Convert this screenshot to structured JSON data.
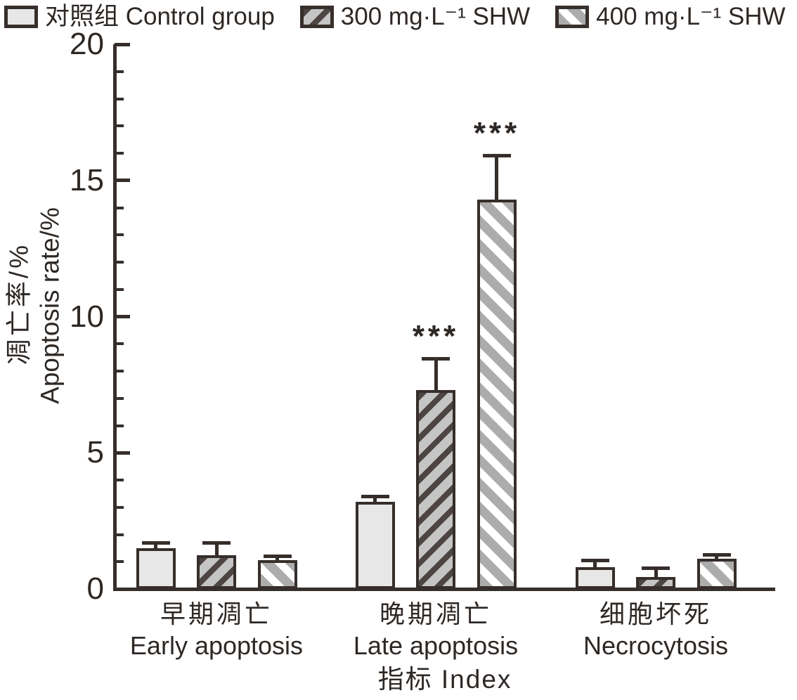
{
  "legend": {
    "items": [
      {
        "label": "对照组 Control group",
        "pattern": "solid"
      },
      {
        "label": "300 mg·L⁻¹ SHW",
        "pattern": "hatch-forward"
      },
      {
        "label": "400 mg·L⁻¹ SHW",
        "pattern": "hatch-back"
      }
    ]
  },
  "axes": {
    "y_label_zh": "凋亡率/%",
    "y_label_en": "Apoptosis rate/%",
    "x_title": "指标 Index"
  },
  "colors": {
    "line": "#362e2b",
    "control_fill": "#e7e7e7",
    "hatch300_stripe": "#4d4542",
    "hatch300_bg": "#c5c5c5",
    "hatch400_stripe": "#acacac",
    "hatch400_bg": "#ffffff"
  },
  "chart_data": {
    "type": "bar",
    "title": "",
    "xlabel": "指标 Index",
    "ylabel": "凋亡率/% Apoptosis rate/%",
    "ylim": [
      0,
      20
    ],
    "ytick_labels": [
      0,
      5,
      10,
      15,
      20
    ],
    "ytick_minor_step": 1,
    "grid": false,
    "legend_position": "top",
    "categories_zh": [
      "早期凋亡",
      "晚期凋亡",
      "细胞坏死"
    ],
    "categories_en": [
      "Early apoptosis",
      "Late apoptosis",
      "Necrocytosis"
    ],
    "series": [
      {
        "name": "对照组 Control group",
        "pattern": "solid",
        "values": [
          1.5,
          3.2,
          0.8
        ],
        "errors_plus": [
          0.2,
          0.2,
          0.25
        ],
        "annotations": [
          "",
          "",
          ""
        ]
      },
      {
        "name": "300 mg·L⁻¹ SHW",
        "pattern": "hatch-forward",
        "values": [
          1.25,
          7.3,
          0.45
        ],
        "errors_plus": [
          0.45,
          1.15,
          0.3
        ],
        "annotations": [
          "",
          "***",
          ""
        ]
      },
      {
        "name": "400 mg·L⁻¹ SHW",
        "pattern": "hatch-back",
        "values": [
          1.05,
          14.3,
          1.1
        ],
        "errors_plus": [
          0.15,
          1.6,
          0.15
        ],
        "annotations": [
          "",
          "***",
          ""
        ]
      }
    ],
    "significance_marker": "***"
  }
}
